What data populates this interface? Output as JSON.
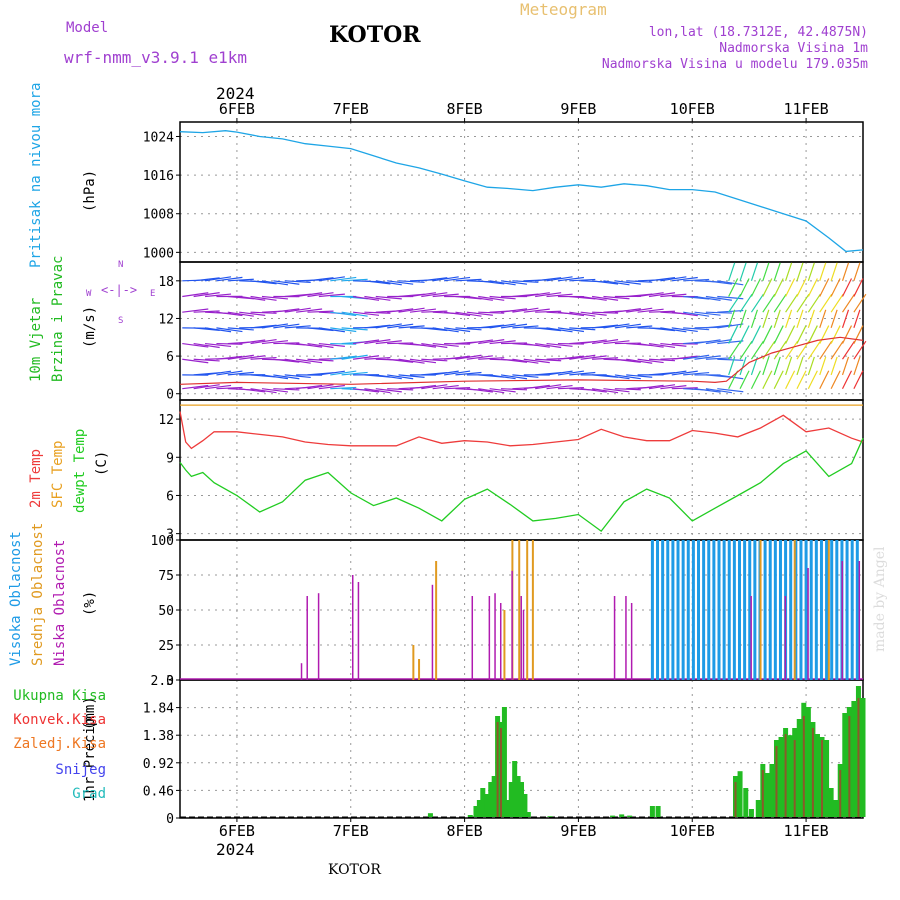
{
  "header": {
    "model_label": "Model",
    "model_name": "wrf-nmm_v3.9.1  e1km",
    "station": "KOTOR",
    "product": "Meteogram",
    "lonlat": "lon,lat (18.7312E, 42.4875N)",
    "altitude": "Nadmorska Visina 1m",
    "model_altitude": "Nadmorska Visina u modelu 179.035m",
    "credit": "made by Angel",
    "footer_station": "KOTOR",
    "year": "2024"
  },
  "colors": {
    "pressure": "#1ea5e6",
    "temp2m": "#ee3b3b",
    "sfc_temp": "#e8a020",
    "dewpt": "#22cc22",
    "high_cloud": "#1e9be6",
    "mid_cloud": "#e09a20",
    "low_cloud": "#b01bb0",
    "wind_label": "#22bb22",
    "wind_dir_label": "#a040d0",
    "total_precip": "#22bb22",
    "conv_precip": "#ee3333",
    "frz_precip": "#ee7722",
    "snow": "#4444ee",
    "hail": "#22bbbb"
  },
  "chart_data": {
    "type": "line",
    "time_range_days": [
      5.5,
      11.5
    ],
    "x_ticks": [
      "6FEB",
      "7FEB",
      "8FEB",
      "9FEB",
      "10FEB",
      "11FEB"
    ],
    "panels": {
      "pressure": {
        "ylabel_name": "Pritisak na nivou mora",
        "ylabel_unit": "(hPa)",
        "ylim": [
          998,
          1027
        ],
        "yticks": [
          "1024",
          "1016",
          "1008",
          "1000"
        ],
        "x": [
          5.5,
          5.7,
          5.9,
          6.0,
          6.2,
          6.4,
          6.6,
          6.8,
          7.0,
          7.2,
          7.4,
          7.6,
          7.8,
          8.0,
          8.2,
          8.4,
          8.6,
          8.8,
          9.0,
          9.2,
          9.4,
          9.6,
          9.8,
          10.0,
          10.2,
          10.4,
          10.6,
          10.8,
          11.0,
          11.2,
          11.35,
          11.5
        ],
        "values": [
          1025,
          1024.8,
          1025.2,
          1024.9,
          1024,
          1023.5,
          1022.5,
          1022,
          1021.5,
          1020,
          1018.5,
          1017.5,
          1016.2,
          1014.8,
          1013.5,
          1013.2,
          1012.8,
          1013.5,
          1014,
          1013.5,
          1014.2,
          1013.8,
          1013,
          1013,
          1012.5,
          1011,
          1009.5,
          1008,
          1006.5,
          1003,
          1000.2,
          1000.5
        ]
      },
      "wind": {
        "ylabel_name": "10m Vjetar",
        "ylabel_name2": "Brzina i Pravac",
        "ylabel_unit": "(m/s)",
        "dir_key": [
          "N",
          "W",
          "E",
          "S"
        ],
        "ylim": [
          -1,
          21
        ],
        "yticks": [
          "18",
          "12",
          "6",
          "0"
        ],
        "speed_x": [
          5.5,
          6.0,
          7.0,
          8.0,
          9.0,
          10.0,
          10.2,
          10.3,
          10.5,
          10.7,
          10.9,
          11.1,
          11.3,
          11.5
        ],
        "speed_values": [
          1.5,
          1.8,
          1.5,
          2.0,
          2.2,
          2.0,
          1.8,
          2.0,
          5.0,
          6.5,
          7.5,
          8.5,
          9.0,
          8.5
        ]
      },
      "temperature": {
        "ylabel_name": "2m Temp",
        "ylabel_name2": "SFC Temp",
        "ylabel_name3": "dewpt Temp",
        "ylabel_unit": "(C)",
        "ylim": [
          2.5,
          13.5
        ],
        "yticks": [
          "12",
          "9",
          "6",
          "3"
        ],
        "sfc_value": 13.1,
        "x": [
          5.5,
          5.55,
          5.6,
          5.7,
          5.8,
          6.0,
          6.2,
          6.4,
          6.6,
          6.8,
          7.0,
          7.2,
          7.4,
          7.6,
          7.8,
          8.0,
          8.2,
          8.4,
          8.6,
          8.8,
          9.0,
          9.2,
          9.4,
          9.6,
          9.8,
          10.0,
          10.2,
          10.4,
          10.6,
          10.8,
          11.0,
          11.2,
          11.4,
          11.5
        ],
        "t2m": [
          12.6,
          10.2,
          9.7,
          10.3,
          11.0,
          11.0,
          10.8,
          10.6,
          10.2,
          10.0,
          9.9,
          9.9,
          9.9,
          10.6,
          10.1,
          10.3,
          10.2,
          9.9,
          10.0,
          10.2,
          10.4,
          11.2,
          10.6,
          10.3,
          10.3,
          11.1,
          10.9,
          10.6,
          11.3,
          12.3,
          11.0,
          11.3,
          10.5,
          10.2
        ],
        "dewpt": [
          8.6,
          8.0,
          7.5,
          7.8,
          7.0,
          6.0,
          4.7,
          5.5,
          7.2,
          7.8,
          6.2,
          5.2,
          5.8,
          5.0,
          4.0,
          5.7,
          6.5,
          5.3,
          4.0,
          4.2,
          4.5,
          3.2,
          5.5,
          6.5,
          5.8,
          4.0,
          5.0,
          6.0,
          7.0,
          8.5,
          9.5,
          7.5,
          8.5,
          10.5
        ]
      },
      "cloud": {
        "ylabel_name": "Visoka Oblacnost",
        "ylabel_name2": "Srednja Oblacnost",
        "ylabel_name3": "Niska Oblacnost",
        "ylabel_unit": "(%)",
        "ylim": [
          0,
          100
        ],
        "yticks": [
          "100",
          "75",
          "50",
          "25",
          "0"
        ],
        "low": [
          [
            6.55,
            12
          ],
          [
            6.6,
            60
          ],
          [
            6.7,
            62
          ],
          [
            7.0,
            75
          ],
          [
            7.05,
            70
          ],
          [
            7.7,
            68
          ],
          [
            8.05,
            60
          ],
          [
            8.2,
            60
          ],
          [
            8.25,
            62
          ],
          [
            8.3,
            55
          ],
          [
            8.4,
            78
          ],
          [
            8.48,
            60
          ],
          [
            8.5,
            50
          ],
          [
            9.3,
            60
          ],
          [
            9.4,
            60
          ],
          [
            9.45,
            55
          ],
          [
            10.5,
            60
          ],
          [
            10.8,
            60
          ],
          [
            11.0,
            80
          ],
          [
            11.3,
            85
          ],
          [
            11.45,
            85
          ]
        ],
        "mid": [
          [
            7.55,
            25
          ],
          [
            7.6,
            15
          ],
          [
            7.75,
            85
          ],
          [
            8.35,
            50
          ],
          [
            8.42,
            100
          ],
          [
            8.48,
            100
          ],
          [
            8.55,
            100
          ],
          [
            8.6,
            100
          ],
          [
            10.6,
            100
          ],
          [
            10.9,
            100
          ],
          [
            11.2,
            100
          ]
        ],
        "high_start": 9.65,
        "high_end": 11.45,
        "high_value": 100
      },
      "precip": {
        "ylabel_name": "1hr Precip",
        "ylabel_unit": "(mm)",
        "ylim": [
          0,
          2.3
        ],
        "yticks": [
          "2.3",
          "1.84",
          "1.38",
          "0.92",
          "0.46",
          "0"
        ],
        "legend": [
          "Ukupna  Kisa",
          "Konvek.Kisa",
          "Zaledj.Kisa",
          "Snijeg",
          "Grad"
        ],
        "total": [
          [
            7.7,
            0.08
          ],
          [
            8.05,
            0.05
          ],
          [
            8.1,
            0.2
          ],
          [
            8.13,
            0.3
          ],
          [
            8.16,
            0.5
          ],
          [
            8.2,
            0.4
          ],
          [
            8.23,
            0.6
          ],
          [
            8.26,
            0.7
          ],
          [
            8.29,
            1.7
          ],
          [
            8.32,
            1.6
          ],
          [
            8.35,
            1.85
          ],
          [
            8.38,
            0.3
          ],
          [
            8.41,
            0.6
          ],
          [
            8.44,
            0.95
          ],
          [
            8.47,
            0.7
          ],
          [
            8.5,
            0.6
          ],
          [
            8.53,
            0.4
          ],
          [
            8.56,
            0.1
          ],
          [
            8.75,
            0.03
          ],
          [
            9.3,
            0.04
          ],
          [
            9.38,
            0.06
          ],
          [
            9.45,
            0.04
          ],
          [
            9.65,
            0.2
          ],
          [
            9.7,
            0.2
          ],
          [
            10.38,
            0.7
          ],
          [
            10.42,
            0.78
          ],
          [
            10.47,
            0.5
          ],
          [
            10.52,
            0.15
          ],
          [
            10.58,
            0.3
          ],
          [
            10.62,
            0.9
          ],
          [
            10.66,
            0.75
          ],
          [
            10.7,
            0.9
          ],
          [
            10.74,
            1.3
          ],
          [
            10.78,
            1.35
          ],
          [
            10.82,
            1.5
          ],
          [
            10.86,
            1.38
          ],
          [
            10.9,
            1.5
          ],
          [
            10.94,
            1.65
          ],
          [
            10.98,
            1.92
          ],
          [
            11.02,
            1.85
          ],
          [
            11.06,
            1.6
          ],
          [
            11.1,
            1.4
          ],
          [
            11.14,
            1.35
          ],
          [
            11.18,
            1.3
          ],
          [
            11.22,
            0.5
          ],
          [
            11.26,
            0.3
          ],
          [
            11.3,
            0.9
          ],
          [
            11.34,
            1.75
          ],
          [
            11.38,
            1.85
          ],
          [
            11.42,
            1.95
          ],
          [
            11.46,
            2.2
          ],
          [
            11.5,
            2.0
          ]
        ],
        "conv": [
          [
            8.29,
            1.6
          ],
          [
            8.32,
            1.5
          ],
          [
            10.38,
            0.6
          ],
          [
            10.62,
            0.8
          ],
          [
            10.74,
            1.2
          ],
          [
            10.82,
            1.4
          ],
          [
            10.9,
            1.3
          ],
          [
            10.98,
            1.7
          ],
          [
            11.06,
            1.5
          ],
          [
            11.14,
            1.3
          ],
          [
            11.3,
            0.8
          ],
          [
            11.38,
            1.7
          ],
          [
            11.46,
            2.0
          ]
        ]
      }
    }
  }
}
